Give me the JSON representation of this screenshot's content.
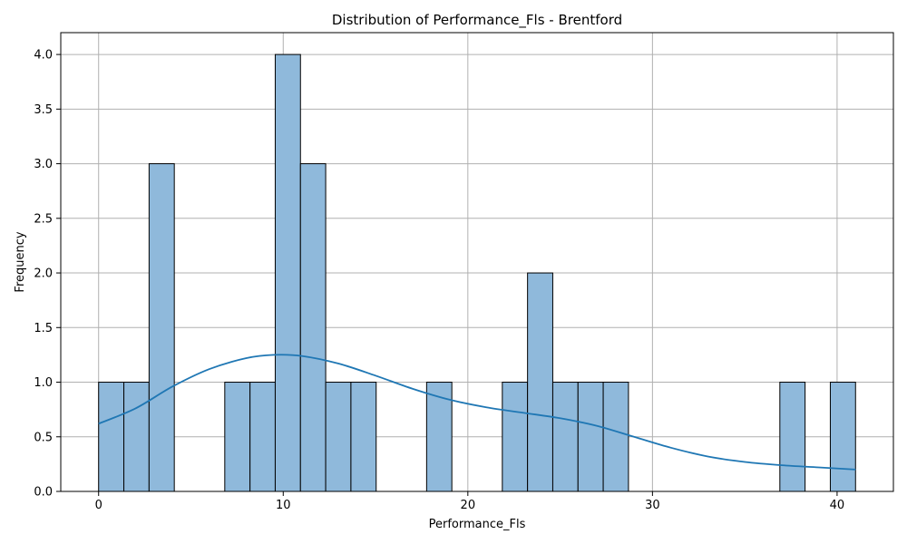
{
  "chart_data": {
    "type": "bar",
    "title": "Distribution of Performance_Fls - Brentford",
    "xlabel": "Performance_Fls",
    "ylabel": "Frequency",
    "xlim": [
      -2.05,
      43.05
    ],
    "ylim": [
      0,
      4.2
    ],
    "x_ticks": [
      0,
      10,
      20,
      30,
      40
    ],
    "y_ticks": [
      0.0,
      0.5,
      1.0,
      1.5,
      2.0,
      2.5,
      3.0,
      3.5,
      4.0
    ],
    "x_tick_labels": [
      "0",
      "10",
      "20",
      "30",
      "40"
    ],
    "y_tick_labels": [
      "0.0",
      "0.5",
      "1.0",
      "1.5",
      "2.0",
      "2.5",
      "3.0",
      "3.5",
      "4.0"
    ],
    "grid": true,
    "bin_edges": [
      0,
      1.3667,
      2.7333,
      4.1,
      5.4667,
      6.8333,
      8.2,
      9.5667,
      10.9333,
      12.3,
      13.6667,
      15.0333,
      16.4,
      17.7667,
      19.1333,
      20.5,
      21.8667,
      23.2333,
      24.6,
      25.9667,
      27.3333,
      28.7,
      30.0667,
      31.4333,
      32.8,
      34.1667,
      35.5333,
      36.9,
      38.2667,
      39.6333,
      41.0
    ],
    "counts": [
      1,
      1,
      3,
      0,
      0,
      1,
      1,
      4,
      3,
      1,
      1,
      0,
      0,
      1,
      0,
      0,
      1,
      2,
      1,
      1,
      1,
      0,
      0,
      0,
      0,
      0,
      0,
      1,
      0,
      1
    ],
    "kde": {
      "x": [
        0,
        2,
        4,
        6,
        8,
        9.5,
        11,
        13,
        15,
        17,
        19,
        21,
        23,
        25,
        27,
        29,
        31,
        33,
        35,
        37,
        39,
        41
      ],
      "y": [
        0.62,
        0.76,
        0.96,
        1.12,
        1.22,
        1.25,
        1.24,
        1.17,
        1.06,
        0.94,
        0.84,
        0.77,
        0.72,
        0.67,
        0.6,
        0.5,
        0.4,
        0.32,
        0.27,
        0.24,
        0.22,
        0.2
      ]
    },
    "colors": {
      "bar_fill": "#8fb9db",
      "bar_edge": "#000000",
      "kde_line": "#1f77b4",
      "grid": "#b0b0b0"
    }
  }
}
